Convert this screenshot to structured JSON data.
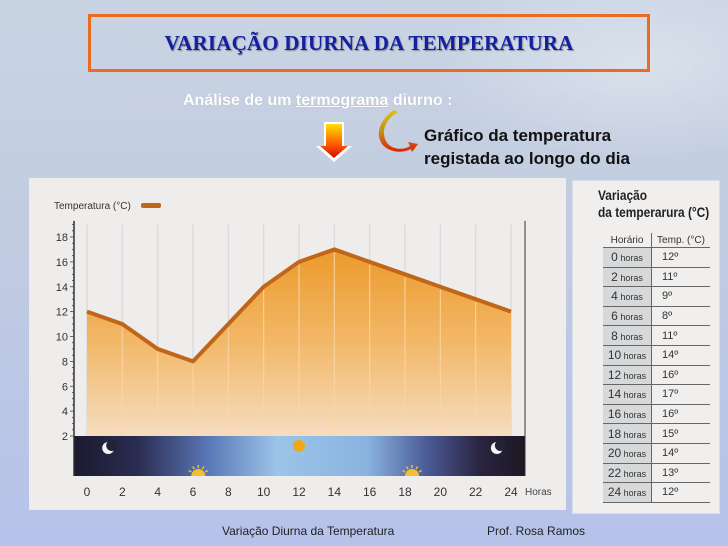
{
  "slide": {
    "title": "VARIAÇÃO DIURNA DA TEMPERATURA",
    "subtitle_prefix": "Análise de um ",
    "subtitle_underlined": "termograma",
    "subtitle_suffix": " diurno :",
    "callout_line1": "Gráfico da temperatura",
    "callout_line2": "registada ao longo do dia",
    "footer_left": "Variação Diurna da Temperatura",
    "footer_right": "Prof. Rosa Ramos",
    "accent_colors": {
      "title_border": "#ec6b22",
      "title_text": "#1420a0",
      "line": "#c0661a",
      "fill": "#f2b55a"
    }
  },
  "chart_data": {
    "type": "area",
    "title": "",
    "legend": "Temperatura (°C)",
    "xlabel": "Horas",
    "ylabel": "Temperatura (°C)",
    "x": [
      0,
      2,
      4,
      6,
      8,
      10,
      12,
      14,
      16,
      18,
      20,
      22,
      24
    ],
    "values": [
      12,
      11,
      9,
      8,
      11,
      14,
      16,
      17,
      16,
      15,
      14,
      13,
      12
    ],
    "series": [
      {
        "name": "Temperatura (°C)",
        "values": [
          12,
          11,
          9,
          8,
          11,
          14,
          16,
          17,
          16,
          15,
          14,
          13,
          12
        ]
      }
    ],
    "x_ticks": [
      "0",
      "2",
      "4",
      "6",
      "8",
      "10",
      "12",
      "14",
      "16",
      "18",
      "20",
      "22",
      "24"
    ],
    "y_ticks": [
      "2",
      "4",
      "6",
      "8",
      "10",
      "12",
      "14",
      "16",
      "18"
    ],
    "ylim": [
      2,
      19
    ],
    "xlim": [
      0,
      24
    ],
    "grid": "vertical",
    "annotations": [
      "night moon at 2h",
      "sunrise ~6h",
      "sun at noon",
      "sunset ~18h",
      "night moon at 23h"
    ]
  },
  "table": {
    "title_line1": "Variação",
    "title_line2": "da temperarura (°C)",
    "headers": [
      "Horário",
      "Temp. (°C)"
    ],
    "rows": [
      {
        "h_num": "0",
        "h_unit": "horas",
        "temp": "12º"
      },
      {
        "h_num": "2",
        "h_unit": "horas",
        "temp": "11º"
      },
      {
        "h_num": "4",
        "h_unit": "horas",
        "temp": "9º"
      },
      {
        "h_num": "6",
        "h_unit": "horas",
        "temp": "8º"
      },
      {
        "h_num": "8",
        "h_unit": "horas",
        "temp": "11º"
      },
      {
        "h_num": "10",
        "h_unit": "horas",
        "temp": "14º"
      },
      {
        "h_num": "12",
        "h_unit": "horas",
        "temp": "16º"
      },
      {
        "h_num": "14",
        "h_unit": "horas",
        "temp": "17º"
      },
      {
        "h_num": "16",
        "h_unit": "horas",
        "temp": "16º"
      },
      {
        "h_num": "18",
        "h_unit": "horas",
        "temp": "15º"
      },
      {
        "h_num": "20",
        "h_unit": "horas",
        "temp": "14º"
      },
      {
        "h_num": "22",
        "h_unit": "horas",
        "temp": "13º"
      },
      {
        "h_num": "24",
        "h_unit": "horas",
        "temp": "12º"
      }
    ]
  }
}
